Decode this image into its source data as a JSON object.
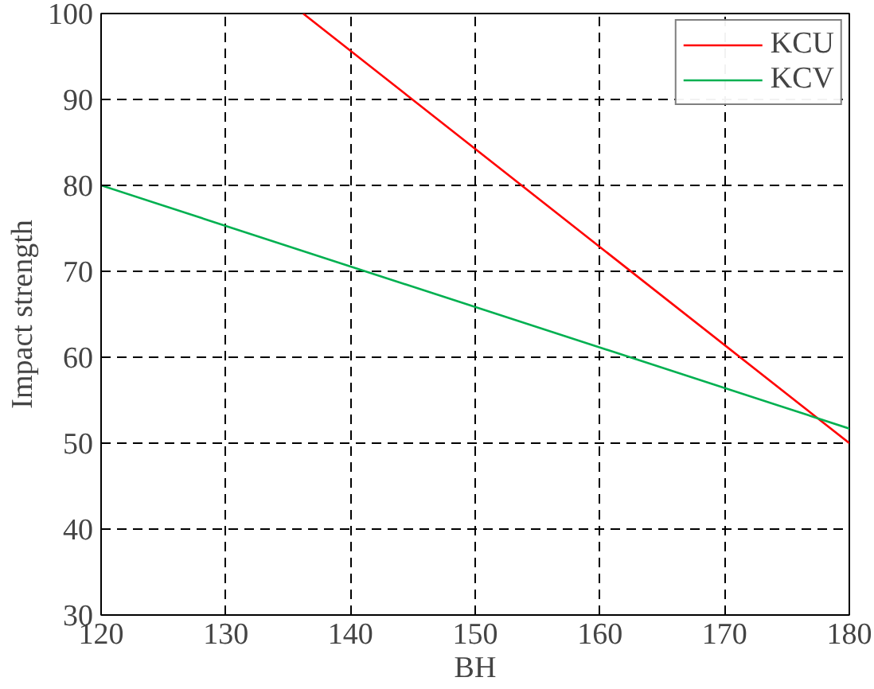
{
  "chart_data": {
    "type": "line",
    "xlabel": "BH",
    "ylabel": "Impact strength",
    "xlim": [
      120,
      180
    ],
    "ylim": [
      30,
      100
    ],
    "xticks": [
      120,
      130,
      140,
      150,
      160,
      170,
      180
    ],
    "yticks": [
      30,
      40,
      50,
      60,
      70,
      80,
      90,
      100
    ],
    "series": [
      {
        "name": "KCU",
        "color": "#ff0000",
        "x": [
          136.2,
          180
        ],
        "values": [
          100,
          50
        ]
      },
      {
        "name": "KCV",
        "color": "#00b050",
        "x": [
          120,
          180
        ],
        "values": [
          80,
          51.7
        ]
      }
    ],
    "grid": true,
    "legend": "top right",
    "line_style": "solid",
    "marker": "none"
  }
}
